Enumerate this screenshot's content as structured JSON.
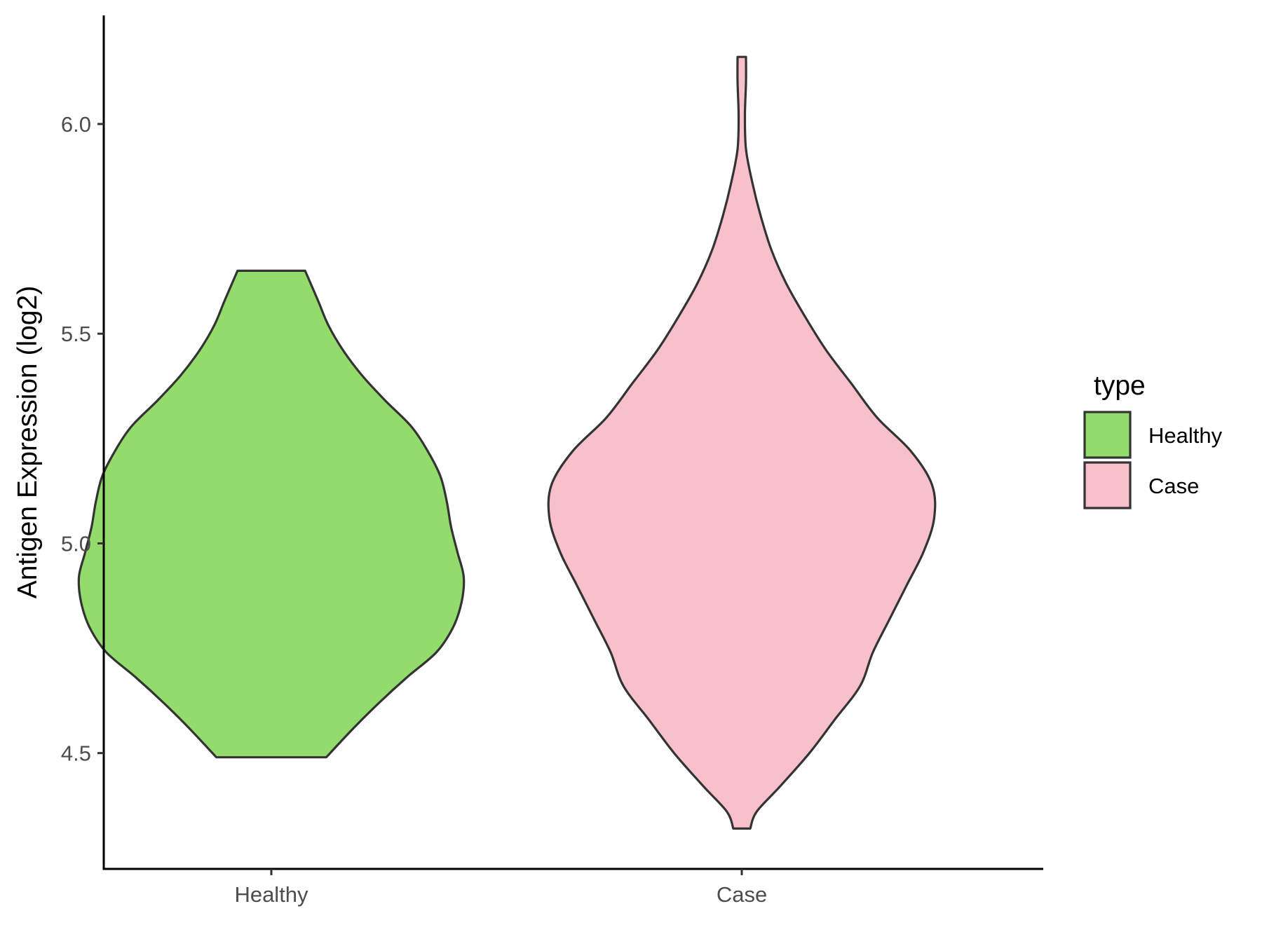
{
  "chart_data": {
    "type": "violin",
    "title": "",
    "xlabel": "",
    "ylabel": "Antigen Expression (log2)",
    "categories": [
      "Healthy",
      "Case"
    ],
    "ylim": [
      4.2,
      6.23
    ],
    "yticks": [
      4.5,
      5.0,
      5.5,
      6.0
    ],
    "ytick_labels": [
      "4.5",
      "5.0",
      "5.5",
      "6.0"
    ],
    "grid": false,
    "legend": {
      "title": "type",
      "position": "right",
      "entries": [
        {
          "label": "Healthy",
          "color": "#93dc6b"
        },
        {
          "label": "Case",
          "color": "#f8c0cb"
        }
      ]
    },
    "series": [
      {
        "category": "Healthy",
        "color": "#93dc6b",
        "y_range": [
          4.49,
          5.65
        ],
        "density_profile": [
          [
            4.49,
            0.26
          ],
          [
            4.56,
            0.39
          ],
          [
            4.62,
            0.51
          ],
          [
            4.68,
            0.64
          ],
          [
            4.74,
            0.78
          ],
          [
            4.8,
            0.86
          ],
          [
            4.86,
            0.9
          ],
          [
            4.92,
            0.91
          ],
          [
            4.98,
            0.88
          ],
          [
            5.04,
            0.85
          ],
          [
            5.1,
            0.83
          ],
          [
            5.16,
            0.8
          ],
          [
            5.22,
            0.74
          ],
          [
            5.28,
            0.66
          ],
          [
            5.34,
            0.54
          ],
          [
            5.4,
            0.43
          ],
          [
            5.46,
            0.34
          ],
          [
            5.52,
            0.27
          ],
          [
            5.58,
            0.22
          ],
          [
            5.65,
            0.16
          ]
        ]
      },
      {
        "category": "Case",
        "color": "#f8c0cb",
        "y_range": [
          4.32,
          6.16
        ],
        "density_profile": [
          [
            4.32,
            0.04
          ],
          [
            4.36,
            0.07
          ],
          [
            4.42,
            0.18
          ],
          [
            4.5,
            0.32
          ],
          [
            4.58,
            0.44
          ],
          [
            4.66,
            0.56
          ],
          [
            4.74,
            0.62
          ],
          [
            4.82,
            0.7
          ],
          [
            4.9,
            0.78
          ],
          [
            4.98,
            0.86
          ],
          [
            5.06,
            0.91
          ],
          [
            5.14,
            0.9
          ],
          [
            5.22,
            0.8
          ],
          [
            5.3,
            0.64
          ],
          [
            5.38,
            0.52
          ],
          [
            5.46,
            0.4
          ],
          [
            5.54,
            0.3
          ],
          [
            5.62,
            0.21
          ],
          [
            5.7,
            0.14
          ],
          [
            5.78,
            0.09
          ],
          [
            5.86,
            0.05
          ],
          [
            5.94,
            0.02
          ],
          [
            6.02,
            0.015
          ],
          [
            6.1,
            0.02
          ],
          [
            6.16,
            0.02
          ]
        ]
      }
    ]
  }
}
